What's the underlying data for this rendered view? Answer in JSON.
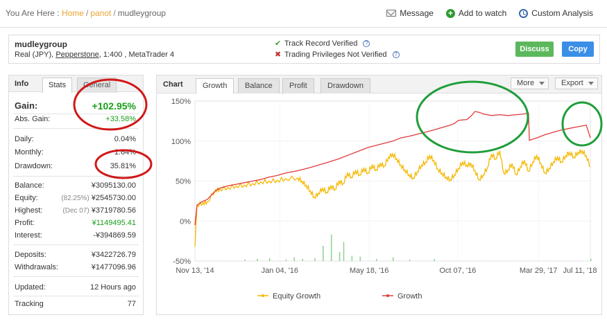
{
  "breadcrumb": {
    "prefix": "You Are Here :",
    "home": "Home",
    "user": "panot",
    "current": "mudleygroup",
    "sep": "/"
  },
  "actions": {
    "message": "Message",
    "watch": "Add to watch",
    "analysis": "Custom Analysis"
  },
  "account": {
    "name": "mudleygroup",
    "type": "Real (JPY),",
    "broker": "Pepperstone",
    "details": ", 1:400 , MetaTrader 4",
    "track_record": "Track Record Verified",
    "trading_privileges": "Trading Privileges Not Verified",
    "discuss": "Discuss",
    "copy": "Copy"
  },
  "info": {
    "title": "Info",
    "tabs": [
      "Stats",
      "General"
    ],
    "gain_label": "Gain:",
    "gain_value": "+102.95%",
    "abs_gain_label": "Abs. Gain:",
    "abs_gain_value": "+33.58%",
    "daily_label": "Daily:",
    "daily_value": "0.04%",
    "monthly_label": "Monthly:",
    "monthly_value": "1.64%",
    "drawdown_label": "Drawdown:",
    "drawdown_value": "35.81%",
    "balance_label": "Balance:",
    "balance_value": "¥3095130.00",
    "equity_label": "Equity:",
    "equity_pct": "(82.25%)",
    "equity_value": "¥2545730.00",
    "highest_label": "Highest:",
    "highest_date": "(Dec 07)",
    "highest_value": "¥3719780.56",
    "profit_label": "Profit:",
    "profit_value": "¥1149495.41",
    "interest_label": "Interest:",
    "interest_value": "-¥394869.59",
    "deposits_label": "Deposits:",
    "deposits_value": "¥3422726.79",
    "withdrawals_label": "Withdrawals:",
    "withdrawals_value": "¥1477096.96",
    "updated_label": "Updated:",
    "updated_value": "12 Hours ago",
    "tracking_label": "Tracking",
    "tracking_value": "77"
  },
  "chart_panel": {
    "title": "Chart",
    "tabs": [
      "Growth",
      "Balance",
      "Profit",
      "Drawdown"
    ],
    "more": "More",
    "export": "Export"
  },
  "colors": {
    "growth": "#e03a3a",
    "equity": "#f5b800",
    "volume": "#8fd08f",
    "annotation": "#d01818",
    "annotation2": "#1f9e3a"
  },
  "chart_data": {
    "type": "line",
    "x_labels": [
      "Nov 13, '14",
      "Jan 04, '16",
      "May 18, '16",
      "Oct 07, '16",
      "Mar 29, '17",
      "Jul 11, '18"
    ],
    "y_ticks": [
      "150%",
      "100%",
      "50%",
      "0%",
      "-50%"
    ],
    "ylim": [
      -50,
      150
    ],
    "grid": true,
    "legend": "bottom",
    "series": [
      {
        "name": "Equity Growth",
        "color": "#f5b800",
        "points": [
          [
            0,
            -32
          ],
          [
            0.5,
            20
          ],
          [
            2,
            23
          ],
          [
            3,
            24
          ],
          [
            5,
            39
          ],
          [
            6,
            40
          ],
          [
            8,
            42
          ],
          [
            10,
            44
          ],
          [
            12,
            45
          ],
          [
            14,
            47
          ],
          [
            16,
            49
          ],
          [
            18,
            50
          ],
          [
            20,
            51
          ],
          [
            22,
            53
          ],
          [
            25,
            54
          ],
          [
            26,
            50
          ],
          [
            27,
            45
          ],
          [
            28,
            38
          ],
          [
            29,
            30
          ],
          [
            30,
            35
          ],
          [
            31,
            41
          ],
          [
            32,
            36
          ],
          [
            33,
            44
          ],
          [
            34,
            40
          ],
          [
            35,
            50
          ],
          [
            36,
            47
          ],
          [
            37,
            60
          ],
          [
            38,
            55
          ],
          [
            39,
            63
          ],
          [
            40,
            58
          ],
          [
            41,
            66
          ],
          [
            42,
            60
          ],
          [
            43,
            70
          ],
          [
            44,
            64
          ],
          [
            45,
            72
          ],
          [
            46,
            69
          ],
          [
            47,
            80
          ],
          [
            48,
            84
          ],
          [
            49,
            78
          ],
          [
            50,
            70
          ],
          [
            51,
            64
          ],
          [
            52,
            58
          ],
          [
            53,
            54
          ],
          [
            54,
            62
          ],
          [
            55,
            70
          ],
          [
            56,
            74
          ],
          [
            57,
            82
          ],
          [
            58,
            76
          ],
          [
            59,
            65
          ],
          [
            60,
            60
          ],
          [
            61,
            55
          ],
          [
            62,
            52
          ],
          [
            63,
            58
          ],
          [
            64,
            66
          ],
          [
            65,
            74
          ],
          [
            66,
            70
          ],
          [
            67,
            72
          ],
          [
            68,
            63
          ],
          [
            69,
            52
          ],
          [
            70,
            58
          ],
          [
            71,
            67
          ],
          [
            72,
            84
          ],
          [
            73,
            78
          ],
          [
            74,
            88
          ],
          [
            75,
            60
          ],
          [
            76,
            64
          ],
          [
            77,
            72
          ],
          [
            78,
            58
          ],
          [
            79,
            68
          ],
          [
            80,
            76
          ],
          [
            81,
            62
          ],
          [
            82,
            74
          ],
          [
            83,
            82
          ],
          [
            84,
            72
          ],
          [
            85,
            60
          ],
          [
            86,
            66
          ],
          [
            87,
            74
          ],
          [
            88,
            80
          ],
          [
            89,
            74
          ],
          [
            90,
            82
          ],
          [
            91,
            86
          ],
          [
            92,
            80
          ],
          [
            93,
            86
          ],
          [
            94,
            88
          ],
          [
            95,
            82
          ],
          [
            96,
            68
          ]
        ]
      },
      {
        "name": "Growth",
        "color": "#e03a3a",
        "points": [
          [
            0,
            -5
          ],
          [
            0.5,
            20
          ],
          [
            2,
            25
          ],
          [
            3,
            27
          ],
          [
            5,
            38
          ],
          [
            6,
            41
          ],
          [
            8,
            44
          ],
          [
            10,
            46
          ],
          [
            12,
            48
          ],
          [
            14,
            50
          ],
          [
            16,
            52
          ],
          [
            18,
            55
          ],
          [
            20,
            57
          ],
          [
            22,
            60
          ],
          [
            25,
            63
          ],
          [
            28,
            67
          ],
          [
            30,
            70
          ],
          [
            32,
            73
          ],
          [
            35,
            78
          ],
          [
            38,
            84
          ],
          [
            40,
            88
          ],
          [
            42,
            92
          ],
          [
            45,
            96
          ],
          [
            48,
            100
          ],
          [
            50,
            104
          ],
          [
            52,
            106
          ],
          [
            55,
            110
          ],
          [
            58,
            114
          ],
          [
            60,
            117
          ],
          [
            62,
            120
          ],
          [
            63,
            122
          ],
          [
            64,
            126
          ],
          [
            66,
            127
          ],
          [
            67,
            131
          ],
          [
            68,
            137
          ],
          [
            69,
            136
          ],
          [
            70,
            134
          ],
          [
            72,
            132
          ],
          [
            74,
            133
          ],
          [
            76,
            132
          ],
          [
            78,
            133
          ],
          [
            80,
            134
          ],
          [
            81,
            135
          ],
          [
            81.2,
            101
          ],
          [
            83,
            104
          ],
          [
            85,
            108
          ],
          [
            87,
            111
          ],
          [
            89,
            114
          ],
          [
            91,
            116
          ],
          [
            93,
            118
          ],
          [
            95,
            120
          ],
          [
            96,
            104
          ]
        ]
      }
    ],
    "volume_bars": [
      [
        12,
        2
      ],
      [
        15,
        3
      ],
      [
        18,
        4
      ],
      [
        22,
        2
      ],
      [
        24,
        5
      ],
      [
        26,
        3
      ],
      [
        29,
        4
      ],
      [
        31,
        20
      ],
      [
        33,
        35
      ],
      [
        35,
        12
      ],
      [
        36,
        25
      ],
      [
        38,
        7
      ],
      [
        40,
        6
      ],
      [
        44,
        3
      ],
      [
        48,
        5
      ],
      [
        52,
        2
      ],
      [
        58,
        3
      ],
      [
        96,
        3
      ]
    ]
  }
}
